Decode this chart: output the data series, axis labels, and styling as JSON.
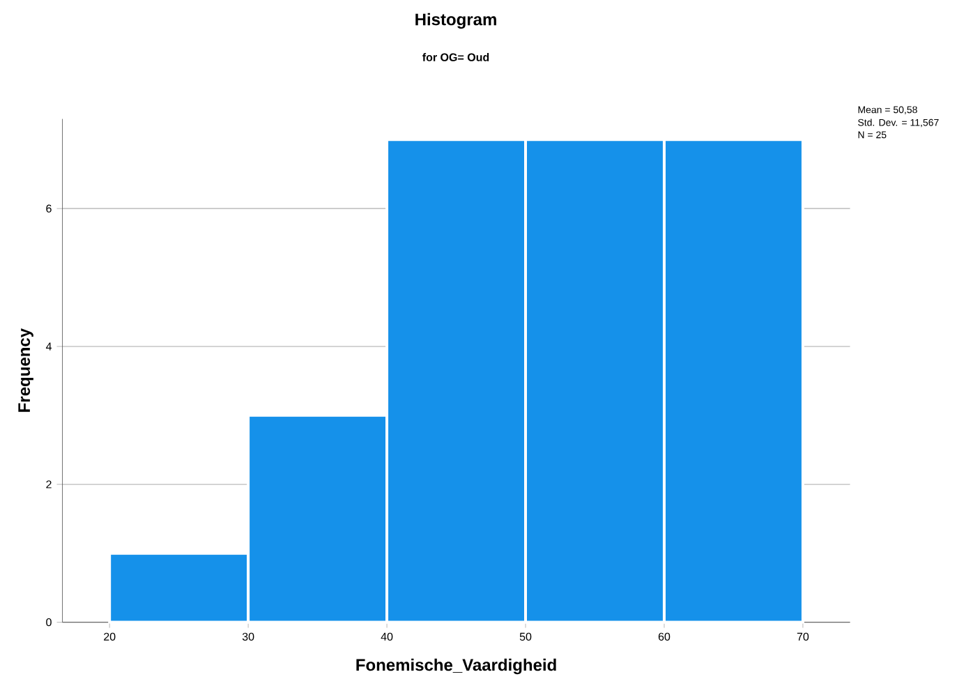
{
  "chart_data": {
    "type": "histogram",
    "title": "Histogram",
    "subtitle": "for OG= Oud",
    "xlabel": "Fonemische_Vaardigheid",
    "ylabel": "Frequency",
    "bins": [
      20,
      30,
      40,
      50,
      60,
      70
    ],
    "values": [
      1,
      3,
      7,
      7,
      7
    ],
    "color": "#1591ea",
    "xlim": [
      16.6,
      73.4
    ],
    "ylim": [
      0,
      7.3
    ],
    "xticks": [
      20,
      30,
      40,
      50,
      60,
      70
    ],
    "yticks": [
      0,
      2,
      4,
      6
    ],
    "grid": "y",
    "annotations": [
      "Mean = 50,58",
      "Std. Dev. = 11,567",
      "N = 25"
    ]
  }
}
